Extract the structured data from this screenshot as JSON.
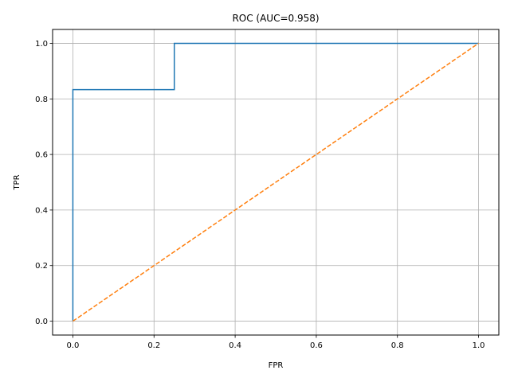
{
  "chart_data": {
    "type": "line",
    "title": "ROC (AUC=0.958)",
    "xlabel": "FPR",
    "ylabel": "TPR",
    "xlim": [
      -0.05,
      1.05
    ],
    "ylim": [
      -0.05,
      1.05
    ],
    "xticks": [
      "0.0",
      "0.2",
      "0.4",
      "0.6",
      "0.8",
      "1.0"
    ],
    "yticks": [
      "0.0",
      "0.2",
      "0.4",
      "0.6",
      "0.8",
      "1.0"
    ],
    "grid": true,
    "series": [
      {
        "style": "solid",
        "color": "#1f77b4",
        "x": [
          0.0,
          0.0,
          0.0,
          0.25,
          0.25,
          1.0
        ],
        "y": [
          0.0,
          0.0,
          0.8333,
          0.8333,
          1.0,
          1.0
        ]
      },
      {
        "style": "dashed",
        "color": "#ff7f0e",
        "x": [
          0.0,
          1.0
        ],
        "y": [
          0.0,
          1.0
        ]
      }
    ]
  }
}
